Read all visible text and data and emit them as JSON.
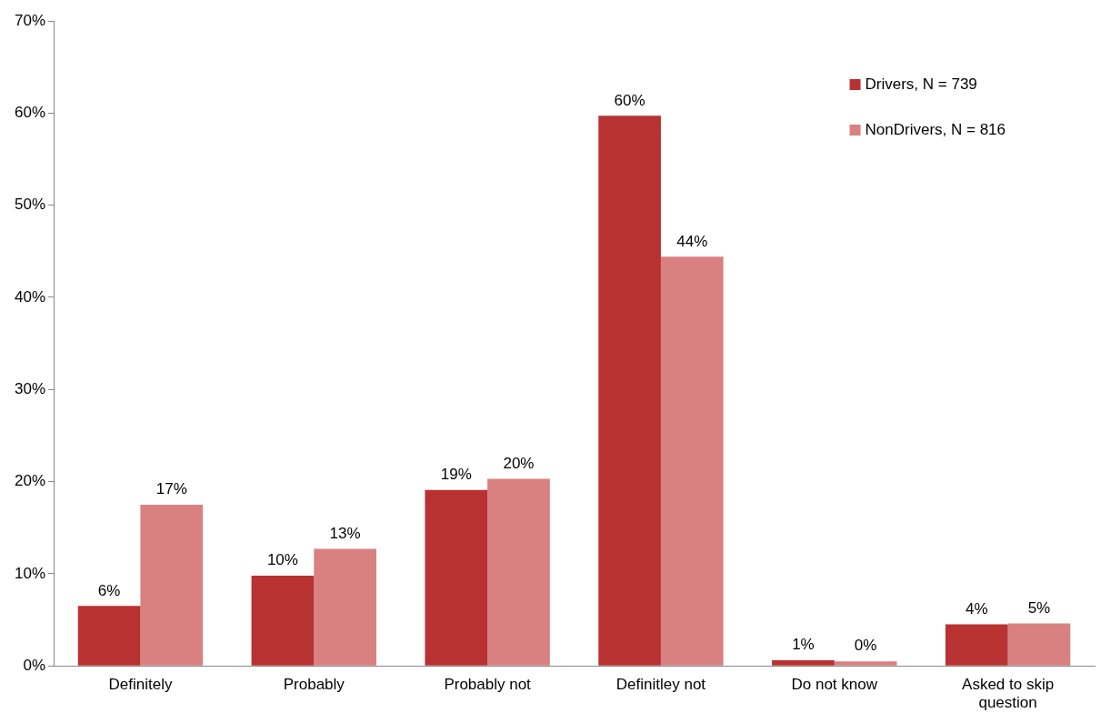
{
  "chart_data": {
    "type": "bar",
    "categories": [
      "Definitely",
      "Probably",
      "Probably not",
      "Definitley not",
      "Do not know",
      "Asked to skip question"
    ],
    "series": [
      {
        "name": "Drivers, N = 739",
        "color": "#b83232",
        "values": [
          6.5,
          9.8,
          19.1,
          59.7,
          0.6,
          4.5
        ],
        "value_labels": [
          "6%",
          "10%",
          "19%",
          "60%",
          "1%",
          "4%"
        ]
      },
      {
        "name": "NonDrivers, N = 816",
        "color": "#d98080",
        "values": [
          17.5,
          12.7,
          20.3,
          44.4,
          0.5,
          4.6
        ],
        "value_labels": [
          "17%",
          "13%",
          "20%",
          "44%",
          "0%",
          "5%"
        ]
      }
    ],
    "ylim": [
      0,
      70
    ],
    "yticks": [
      {
        "value": 0,
        "label": "0%"
      },
      {
        "value": 10,
        "label": "10%"
      },
      {
        "value": 20,
        "label": "20%"
      },
      {
        "value": 30,
        "label": "30%"
      },
      {
        "value": 40,
        "label": "40%"
      },
      {
        "value": 50,
        "label": "50%"
      },
      {
        "value": 60,
        "label": "60%"
      },
      {
        "value": 70,
        "label": "70%"
      }
    ],
    "grid": false,
    "legend": "top right"
  }
}
